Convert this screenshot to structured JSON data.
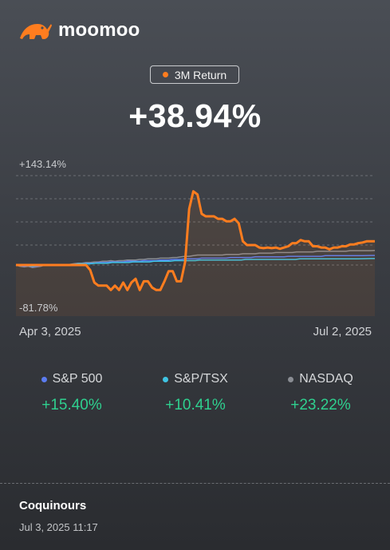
{
  "brand": {
    "name": "moomoo",
    "logo_icon": "bull-logo-icon",
    "accent": "#ff7d1f"
  },
  "period_label": "3M Return",
  "total_return": "+38.94%",
  "axis": {
    "max_label": "+143.14%",
    "min_label": "-81.78%",
    "start_date": "Apr 3, 2025",
    "end_date": "Jul 2, 2025"
  },
  "benchmarks": [
    {
      "name": "S&P 500",
      "value": "+15.40%",
      "color": "#5b7cf0"
    },
    {
      "name": "S&P/TSX",
      "value": "+10.41%",
      "color": "#3fc4e3"
    },
    {
      "name": "NASDAQ",
      "value": "+23.22%",
      "color": "#8a8d93"
    }
  ],
  "footer": {
    "author": "Coquinours",
    "timestamp": "Jul 3, 2025 11:17"
  },
  "chart_data": {
    "type": "line",
    "x_range": [
      "Apr 3, 2025",
      "Jul 2, 2025"
    ],
    "ylim": [
      -81.78,
      143.14
    ],
    "grid": true,
    "series": [
      {
        "color": "#ff7d1f",
        "values": [
          0,
          0,
          0,
          0,
          0,
          0,
          0,
          0,
          0,
          0,
          0,
          0,
          0,
          0,
          0,
          0,
          0,
          0,
          -8,
          -28,
          -33,
          -33,
          -33,
          -40,
          -33,
          -40,
          -28,
          -40,
          -28,
          -22,
          -40,
          -26,
          -26,
          -36,
          -40,
          -40,
          -26,
          -10,
          -10,
          -26,
          -26,
          5,
          90,
          118,
          113,
          82,
          78,
          78,
          78,
          74,
          74,
          70,
          70,
          74,
          67,
          38,
          32,
          32,
          32,
          28,
          27,
          28,
          27,
          28,
          26,
          28,
          30,
          35,
          35,
          40,
          38,
          38,
          30,
          30,
          28,
          28,
          25,
          28,
          28,
          30,
          30,
          33,
          33,
          35,
          36,
          38,
          38,
          38
        ]
      },
      {
        "color": "#8a8d93",
        "values": [
          0,
          -2,
          -3,
          -2,
          -4,
          -3,
          -2,
          0,
          -1,
          0,
          0,
          0,
          1,
          1,
          2,
          3,
          3,
          4,
          4,
          5,
          5,
          6,
          6,
          7,
          6,
          7,
          7,
          8,
          8,
          8,
          9,
          9,
          10,
          10,
          10,
          11,
          11,
          11,
          12,
          12,
          13,
          14,
          14,
          15,
          16,
          16,
          16,
          16,
          16,
          16,
          16,
          17,
          17,
          17,
          17,
          18,
          18,
          18,
          18,
          19,
          19,
          19,
          19,
          20,
          20,
          20,
          20,
          20,
          21,
          21,
          21,
          21,
          21,
          22,
          22,
          22,
          22,
          22,
          22,
          22,
          22,
          23,
          23,
          23,
          23,
          23,
          23,
          23.22
        ]
      },
      {
        "color": "#5b7cf0",
        "values": [
          0,
          -1,
          -2,
          -1,
          -3,
          -2,
          -1,
          0,
          0,
          0,
          0,
          0,
          1,
          1,
          1,
          2,
          2,
          3,
          3,
          3,
          4,
          4,
          4,
          5,
          5,
          5,
          5,
          6,
          6,
          6,
          6,
          7,
          7,
          7,
          7,
          8,
          8,
          8,
          9,
          9,
          9,
          10,
          10,
          10,
          10,
          11,
          11,
          11,
          11,
          11,
          11,
          11,
          12,
          12,
          12,
          12,
          12,
          12,
          13,
          13,
          13,
          13,
          13,
          13,
          13,
          13,
          14,
          14,
          14,
          14,
          14,
          14,
          14,
          14,
          14,
          15,
          15,
          15,
          15,
          15,
          15,
          15,
          15,
          15,
          15,
          15.2,
          15.3,
          15.4
        ]
      },
      {
        "color": "#3fc4e3",
        "values": [
          0,
          -1,
          -1,
          -1,
          -2,
          -1,
          -1,
          0,
          0,
          0,
          0,
          1,
          1,
          1,
          1,
          2,
          2,
          2,
          2,
          3,
          3,
          3,
          3,
          4,
          4,
          4,
          4,
          4,
          5,
          5,
          5,
          5,
          5,
          6,
          6,
          6,
          6,
          6,
          7,
          7,
          7,
          7,
          7,
          7,
          8,
          8,
          8,
          8,
          8,
          8,
          8,
          8,
          8,
          8,
          8,
          9,
          9,
          9,
          9,
          9,
          9,
          9,
          9,
          9,
          9,
          9,
          9,
          9,
          10,
          10,
          10,
          10,
          10,
          10,
          10,
          10,
          10,
          10,
          10,
          10,
          10,
          10,
          10,
          10.1,
          10.2,
          10.3,
          10.41
        ]
      }
    ]
  }
}
